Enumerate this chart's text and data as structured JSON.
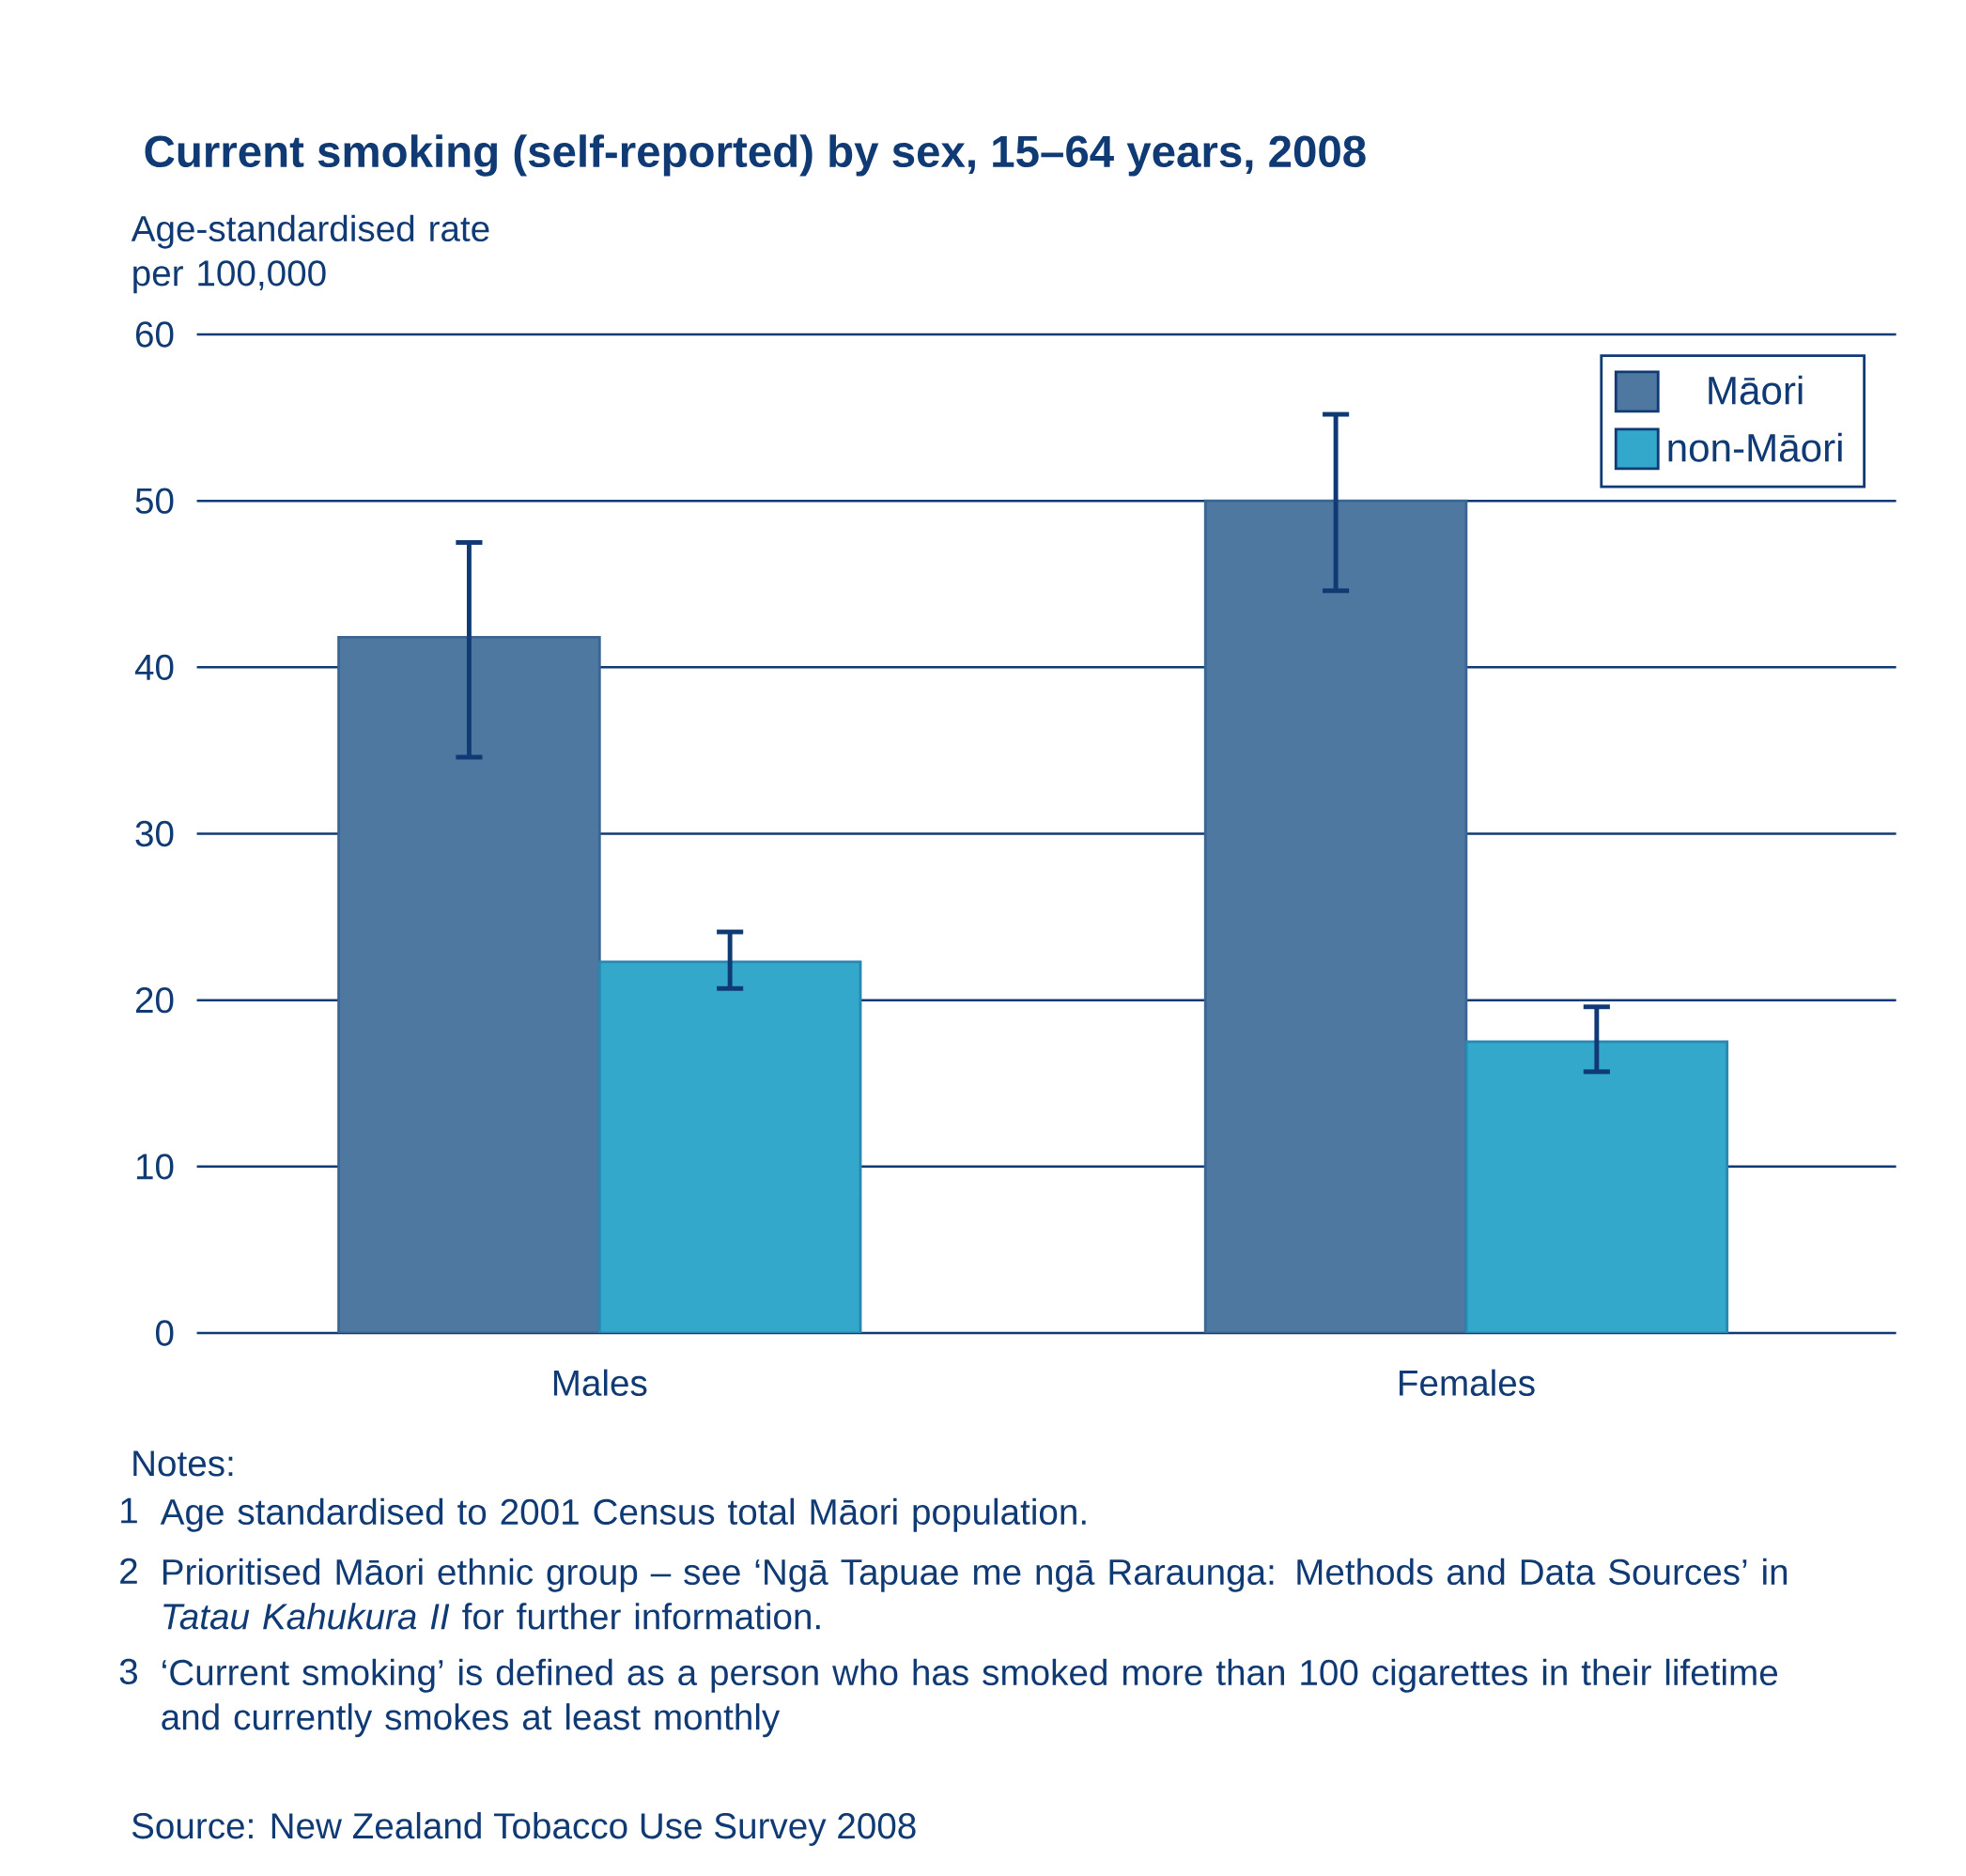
{
  "chart_data": {
    "type": "bar",
    "title": "Current smoking (self-reported) by sex, 15–64 years, 2008",
    "ylabel": "Age-standardised rate per 100,000",
    "categories": [
      "Males",
      "Females"
    ],
    "series": [
      {
        "name": "Māori",
        "color": "#4e78a0",
        "values": [
          41.8,
          50.0
        ],
        "errors": [
          [
            34.6,
            47.5
          ],
          [
            44.6,
            55.2
          ]
        ]
      },
      {
        "name": "non-Māori",
        "color": "#33a8cb",
        "values": [
          22.3,
          17.5
        ],
        "errors": [
          [
            20.7,
            24.1
          ],
          [
            15.7,
            19.6
          ]
        ]
      }
    ],
    "ylim": [
      0,
      60
    ],
    "yticks": [
      0,
      10,
      20,
      30,
      40,
      50,
      60
    ],
    "grid": "y",
    "legend": "top right",
    "annotations": [
      "Notes:",
      "1",
      "Age standardised to 2001 Census total Māori population.",
      "2",
      "Prioritised Māori ethnic group – see ‘Ngā Tapuae me ngā Raraunga: Methods and Data Sources’  in *Tatau Kahukura II* for further information.",
      "3",
      "‘Current smoking’ is defined as a person who has smoked more than 100 cigarettes in their lifetime and currently smokes at least monthly",
      "Source: New Zealand Tobacco Use Survey 2008"
    ]
  }
}
